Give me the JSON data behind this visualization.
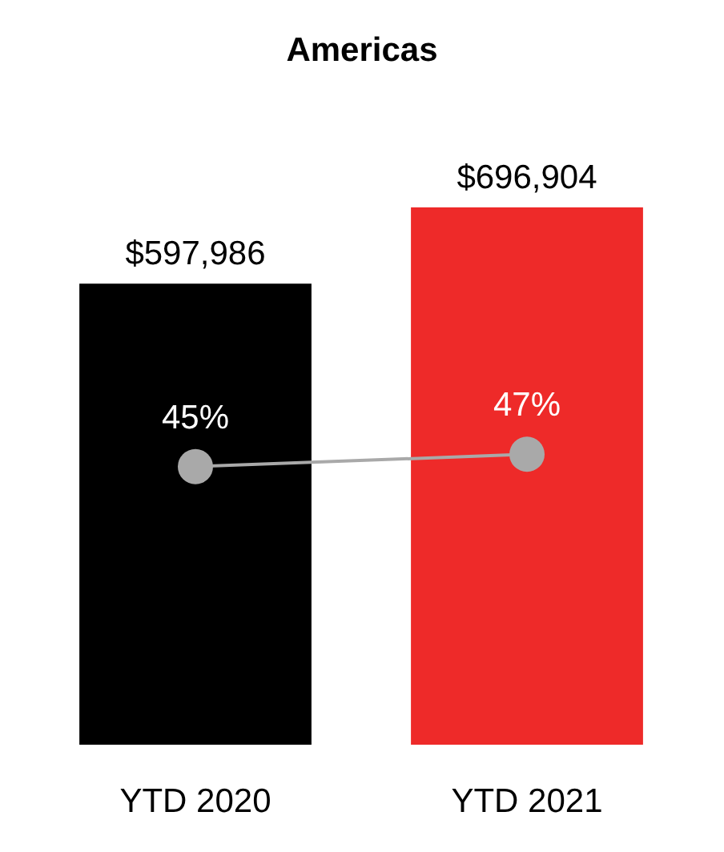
{
  "chart_data": {
    "type": "bar",
    "title": "Americas",
    "categories": [
      "YTD 2020",
      "YTD 2021"
    ],
    "series": [
      {
        "colors": [
          "#000000",
          "#ee2a29"
        ],
        "values": [
          597986,
          696904
        ],
        "value_labels": [
          "$597,986",
          "$696,904"
        ]
      },
      {
        "type": "line",
        "axis": "y2",
        "color": "#a9a9a9",
        "marker": "circle",
        "values": [
          45,
          47
        ],
        "value_labels": [
          "45%",
          "47%"
        ]
      }
    ]
  }
}
